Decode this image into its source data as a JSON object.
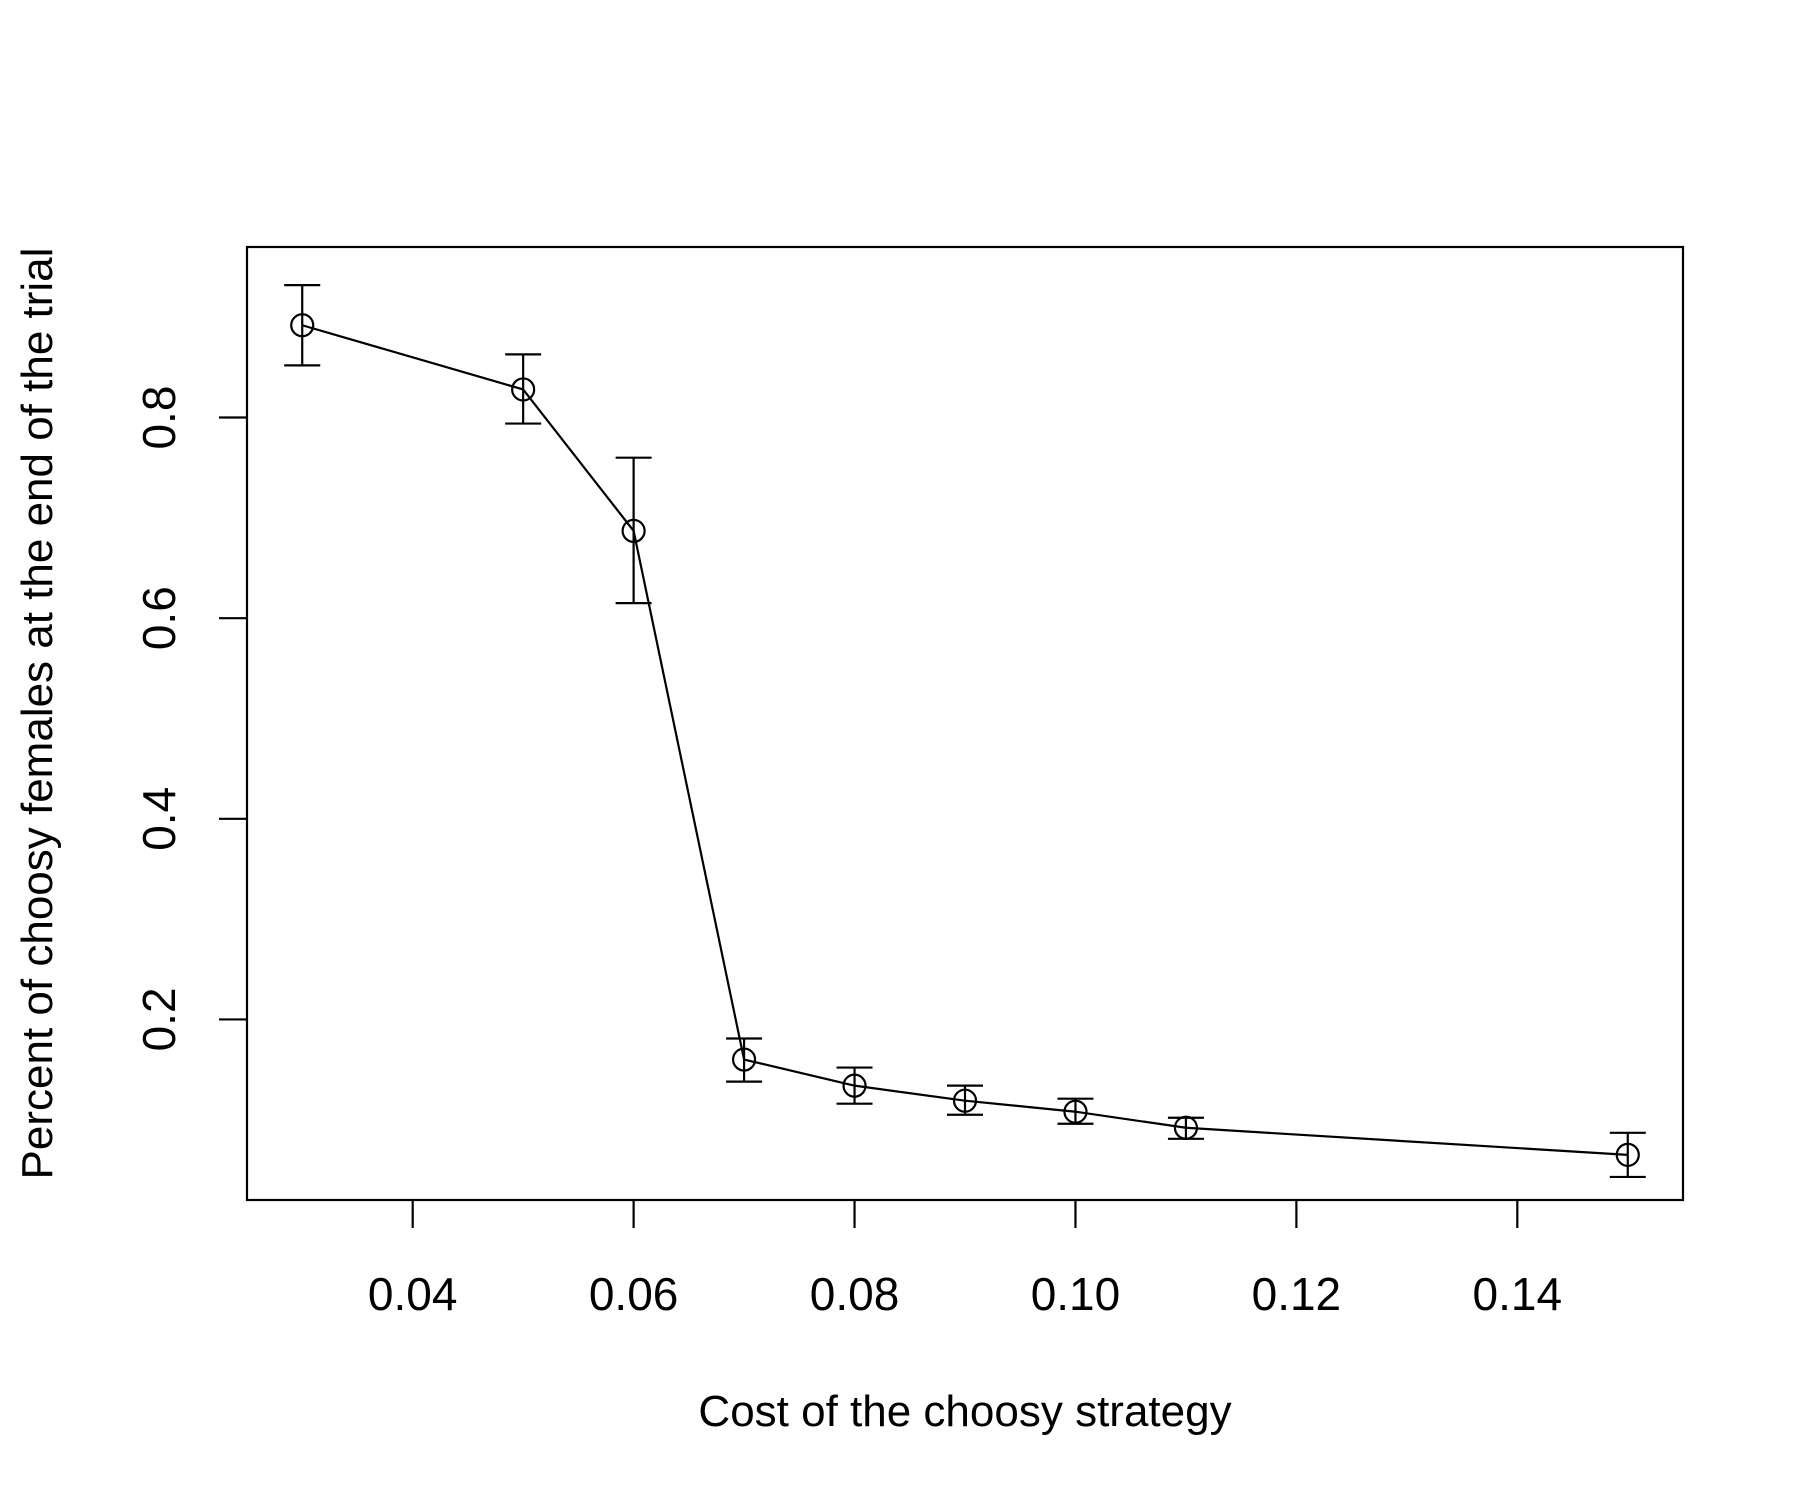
{
  "chart_data": {
    "type": "line",
    "title": "",
    "xlabel": "Cost of the choosy strategy",
    "ylabel": "Percent of choosy females at the end of the trial",
    "xlim": [
      0.025,
      0.155
    ],
    "ylim": [
      0.02,
      0.97
    ],
    "x_ticks": [
      0.04,
      0.06,
      0.08,
      0.1,
      0.12,
      0.14
    ],
    "x_tick_labels": [
      "0.04",
      "0.06",
      "0.08",
      "0.10",
      "0.12",
      "0.14"
    ],
    "y_ticks": [
      0.2,
      0.4,
      0.6,
      0.8
    ],
    "y_tick_labels": [
      "0.2",
      "0.4",
      "0.6",
      "0.8"
    ],
    "grid": false,
    "legend": "none",
    "marker": "open-circle",
    "line_color": "#000000",
    "series": [
      {
        "x": [
          0.03,
          0.05,
          0.06,
          0.07,
          0.08,
          0.09,
          0.1,
          0.11,
          0.15
        ],
        "y": [
          0.892,
          0.828,
          0.687,
          0.16,
          0.134,
          0.119,
          0.108,
          0.092,
          0.065
        ],
        "y_upper": [
          0.932,
          0.863,
          0.76,
          0.181,
          0.152,
          0.134,
          0.121,
          0.102,
          0.087
        ],
        "y_lower": [
          0.852,
          0.794,
          0.615,
          0.138,
          0.116,
          0.105,
          0.096,
          0.081,
          0.043
        ]
      }
    ]
  }
}
